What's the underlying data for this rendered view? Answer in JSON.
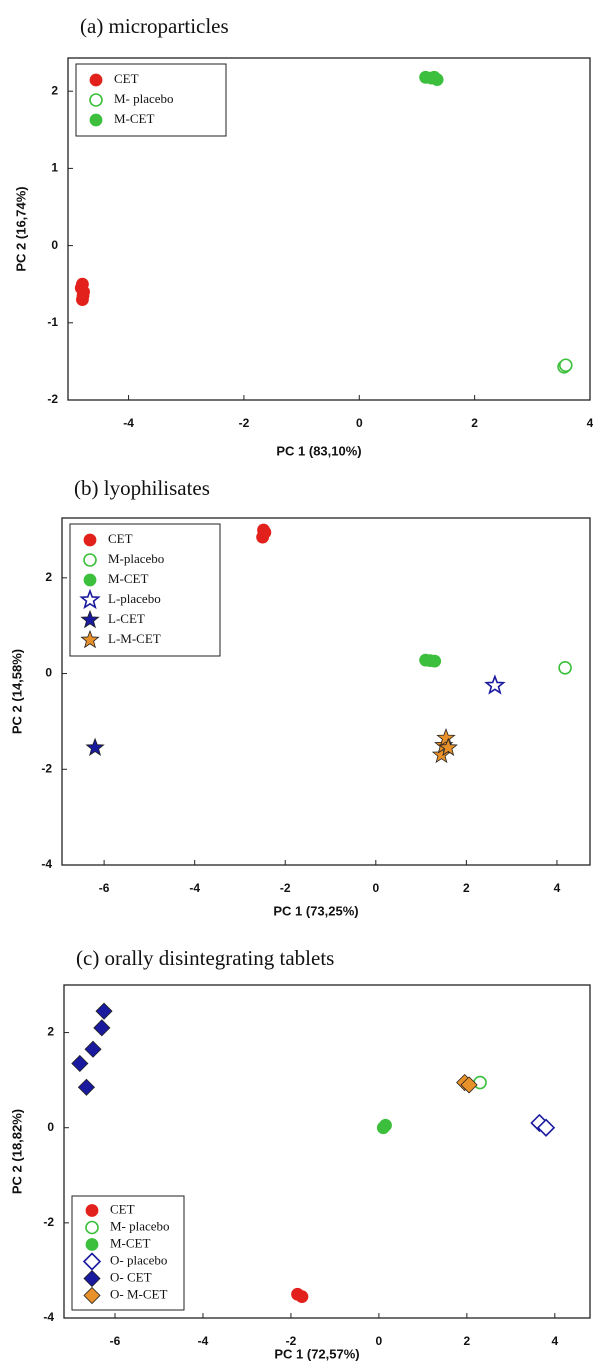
{
  "chart_data": [
    {
      "type": "scatter",
      "title": "(a) microparticles",
      "x_label": "PC 1 (83,10%)",
      "y_label": "PC 2 (16,74%)",
      "xlim": [
        -5.05,
        4
      ],
      "ylim": [
        -2,
        2.43
      ],
      "xticks": [
        -4,
        -2,
        0,
        2,
        4
      ],
      "yticks": [
        -2,
        -1,
        0,
        1,
        2
      ],
      "legend": "upper left",
      "series": [
        {
          "name": "CET",
          "color": "#e3211c",
          "marker": "circle",
          "filled": true,
          "x": [
            -4.8,
            -4.78,
            -4.8,
            -4.82,
            -4.79
          ],
          "y": [
            -0.5,
            -0.6,
            -0.7,
            -0.55,
            -0.65
          ]
        },
        {
          "name": "M- placebo",
          "color": "#3cbf3c",
          "marker": "circle",
          "filled": false,
          "x": [
            3.55,
            3.58
          ],
          "y": [
            -1.57,
            -1.55
          ]
        },
        {
          "name": "M-CET",
          "color": "#3cbf3c",
          "marker": "circle",
          "filled": true,
          "x": [
            1.15,
            1.25,
            1.35,
            1.3
          ],
          "y": [
            2.18,
            2.17,
            2.15,
            2.18
          ]
        }
      ]
    },
    {
      "type": "scatter",
      "title": "(b) lyophilisates",
      "x_label": "PC 1 (73,25%)",
      "y_label": "PC 2 (14,58%)",
      "xlim": [
        -6.93,
        4.73
      ],
      "ylim": [
        -4,
        3.25
      ],
      "xticks": [
        -6,
        -4,
        -2,
        0,
        2,
        4
      ],
      "yticks": [
        -4,
        -2,
        0,
        2
      ],
      "legend": "upper left",
      "series": [
        {
          "name": "CET",
          "color": "#e3211c",
          "marker": "circle",
          "filled": true,
          "x": [
            -2.5,
            -2.45,
            -2.48
          ],
          "y": [
            2.85,
            2.95,
            3.0
          ]
        },
        {
          "name": "M-placebo",
          "color": "#3cbf3c",
          "marker": "circle",
          "filled": false,
          "x": [
            4.18
          ],
          "y": [
            0.12
          ]
        },
        {
          "name": "M-CET",
          "color": "#3cbf3c",
          "marker": "circle",
          "filled": true,
          "x": [
            1.1,
            1.2,
            1.3
          ],
          "y": [
            0.28,
            0.27,
            0.26
          ]
        },
        {
          "name": "L-placebo",
          "color": "#1a1a9e",
          "marker": "star",
          "filled": false,
          "x": [
            2.63
          ],
          "y": [
            -0.25
          ]
        },
        {
          "name": "L-CET",
          "color": "#1a1a9e",
          "marker": "star",
          "filled": true,
          "x": [
            -6.2
          ],
          "y": [
            -1.55
          ]
        },
        {
          "name": "L-M-CET",
          "color": "#e8902a",
          "marker": "star",
          "filled": true,
          "x": [
            1.45,
            1.5,
            1.55,
            1.6
          ],
          "y": [
            -1.7,
            -1.5,
            -1.35,
            -1.55
          ]
        }
      ]
    },
    {
      "type": "scatter",
      "title": "(c) orally disintegrating tablets",
      "x_label": "PC 1 (72,57%)",
      "y_label": "PC 2 (18,82%)",
      "xlim": [
        -7.16,
        4.8
      ],
      "ylim": [
        -4,
        3.0
      ],
      "xticks": [
        -6,
        -4,
        -2,
        0,
        2,
        4
      ],
      "yticks": [
        -4,
        -2,
        0,
        2
      ],
      "legend": "lower left",
      "series": [
        {
          "name": "CET",
          "color": "#e3211c",
          "marker": "circle",
          "filled": true,
          "x": [
            -1.85,
            -1.75
          ],
          "y": [
            -3.5,
            -3.55
          ]
        },
        {
          "name": "M- placebo",
          "color": "#3cbf3c",
          "marker": "circle",
          "filled": false,
          "x": [
            2.3
          ],
          "y": [
            0.95
          ]
        },
        {
          "name": "M-CET",
          "color": "#3cbf3c",
          "marker": "circle",
          "filled": true,
          "x": [
            0.1,
            0.15
          ],
          "y": [
            0.0,
            0.05
          ]
        },
        {
          "name": "O- placebo",
          "color": "#1a1a9e",
          "marker": "diamond",
          "filled": false,
          "x": [
            3.65,
            3.8
          ],
          "y": [
            0.1,
            0.0
          ]
        },
        {
          "name": "O- CET",
          "color": "#1a1a9e",
          "marker": "diamond",
          "filled": true,
          "x": [
            -6.25,
            -6.3,
            -6.5,
            -6.8,
            -6.65
          ],
          "y": [
            2.45,
            2.1,
            1.65,
            1.35,
            0.85
          ]
        },
        {
          "name": "O- M-CET",
          "color": "#e8902a",
          "marker": "diamond",
          "filled": true,
          "x": [
            1.95,
            2.05
          ],
          "y": [
            0.95,
            0.9
          ]
        }
      ]
    }
  ]
}
